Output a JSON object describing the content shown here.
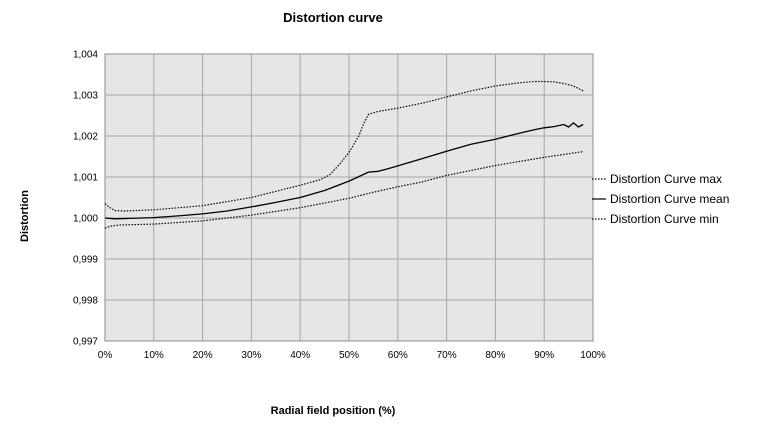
{
  "chart_data": {
    "type": "line",
    "title": "Distortion curve",
    "xlabel": "Radial field position (%)",
    "ylabel": "Distortion",
    "xlim": [
      0,
      100
    ],
    "ylim": [
      0.997,
      1.004
    ],
    "x_ticks": [
      0,
      10,
      20,
      30,
      40,
      50,
      60,
      70,
      80,
      90,
      100
    ],
    "x_tick_labels": [
      "0%",
      "10%",
      "20%",
      "30%",
      "40%",
      "50%",
      "60%",
      "70%",
      "80%",
      "90%",
      "100%"
    ],
    "y_ticks": [
      0.997,
      0.998,
      0.999,
      1.0,
      1.001,
      1.002,
      1.003,
      1.004
    ],
    "y_tick_labels": [
      "0,997",
      "0,998",
      "0,999",
      "1,000",
      "1,001",
      "1,002",
      "1,003",
      "1,004"
    ],
    "grid": true,
    "plot_background": "#e6e6e6",
    "grid_color": "#a6a6a6",
    "legend_position": "right",
    "series": [
      {
        "name": "Distortion Curve max",
        "style": "dotted",
        "color": "#000000",
        "x": [
          0,
          1,
          2,
          4,
          10,
          20,
          30,
          40,
          44,
          46,
          48,
          50,
          52,
          53,
          54,
          56,
          60,
          65,
          70,
          75,
          80,
          85,
          88,
          90,
          92,
          94,
          96,
          98
        ],
        "y": [
          1.00035,
          1.00025,
          1.00018,
          1.00017,
          1.0002,
          1.0003,
          1.0005,
          1.0008,
          1.00093,
          1.00105,
          1.0013,
          1.0016,
          1.002,
          1.0023,
          1.00253,
          1.0026,
          1.00268,
          1.0028,
          1.00295,
          1.0031,
          1.00322,
          1.0033,
          1.00333,
          1.00333,
          1.00332,
          1.00328,
          1.00322,
          1.0031
        ]
      },
      {
        "name": "Distortion Curve mean",
        "style": "solid",
        "color": "#000000",
        "x": [
          0,
          2,
          5,
          10,
          15,
          20,
          25,
          30,
          35,
          40,
          45,
          50,
          54,
          56,
          58,
          60,
          65,
          70,
          75,
          80,
          85,
          88,
          90,
          92,
          94,
          95,
          96,
          97,
          98
        ],
        "y": [
          1.0,
          0.99998,
          0.99999,
          1.00001,
          1.00005,
          1.0001,
          1.00017,
          1.00027,
          1.00038,
          1.0005,
          1.00067,
          1.0009,
          1.00112,
          1.00114,
          1.0012,
          1.00127,
          1.00145,
          1.00163,
          1.0018,
          1.00192,
          1.00207,
          1.00215,
          1.0022,
          1.00223,
          1.00228,
          1.00222,
          1.00232,
          1.00222,
          1.00228
        ]
      },
      {
        "name": "Distortion Curve min",
        "style": "dotted",
        "color": "#000000",
        "x": [
          0,
          1,
          3,
          10,
          20,
          30,
          40,
          50,
          55,
          60,
          65,
          70,
          80,
          90,
          98
        ],
        "y": [
          0.99975,
          0.9998,
          0.99983,
          0.99985,
          0.99993,
          1.00007,
          1.00025,
          1.00048,
          1.00063,
          1.00076,
          1.00088,
          1.00104,
          1.00128,
          1.00148,
          1.00162
        ]
      }
    ]
  }
}
